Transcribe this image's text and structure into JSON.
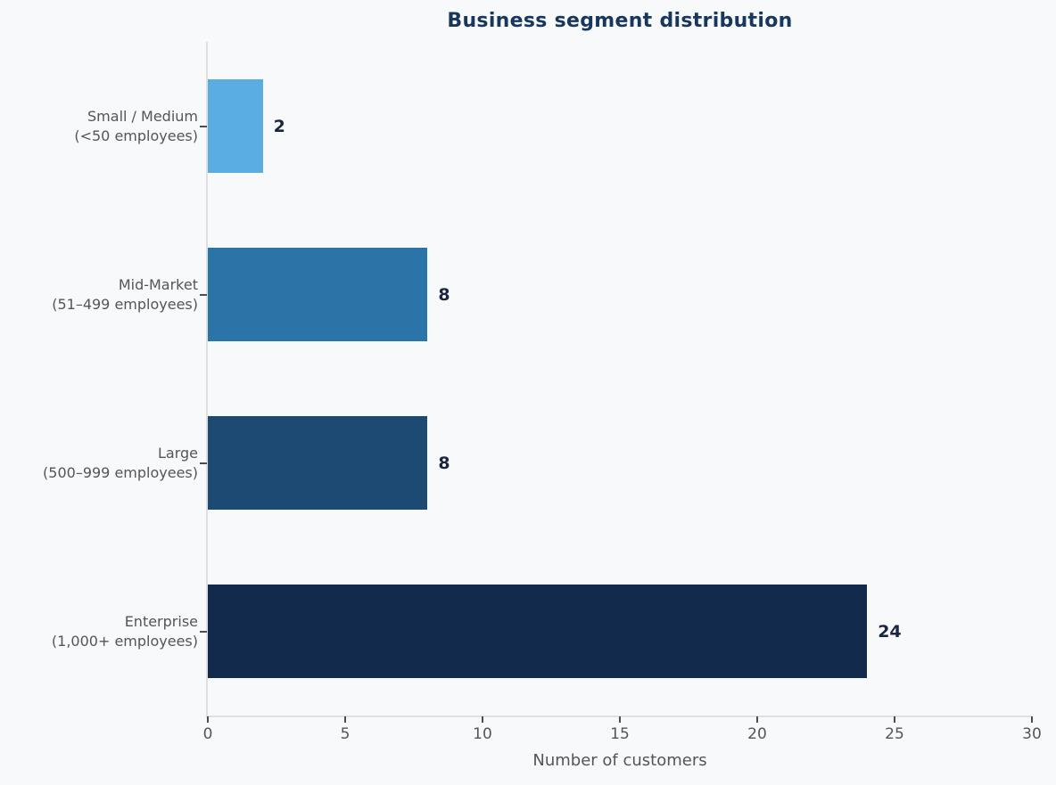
{
  "chart_data": {
    "type": "bar",
    "orientation": "horizontal",
    "title": "Business segment distribution",
    "xlabel": "Number of customers",
    "ylabel": "",
    "categories": [
      [
        "Small / Medium",
        "(<50 employees)"
      ],
      [
        "Mid-Market",
        "(51–499 employees)"
      ],
      [
        "Large",
        "(500–999 employees)"
      ],
      [
        "Enterprise",
        "(1,000+ employees)"
      ]
    ],
    "values": [
      2,
      8,
      8,
      24
    ],
    "value_labels": [
      "2",
      "8",
      "8",
      "24"
    ],
    "bar_colors": [
      "#5aade0",
      "#2a74a8",
      "#1d4a72",
      "#122a4b"
    ],
    "xlim": [
      0,
      30
    ],
    "x_ticks": [
      "0",
      "5",
      "10",
      "15",
      "20",
      "25",
      "30"
    ],
    "grid": false,
    "legend": null
  },
  "colors": {
    "background": "#f8f9fa",
    "title": "#17375e",
    "tick_label": "#555555",
    "tick_mark": "#4d4d4d",
    "value_label": "#1a2540",
    "spine": "#e0e0e0"
  }
}
